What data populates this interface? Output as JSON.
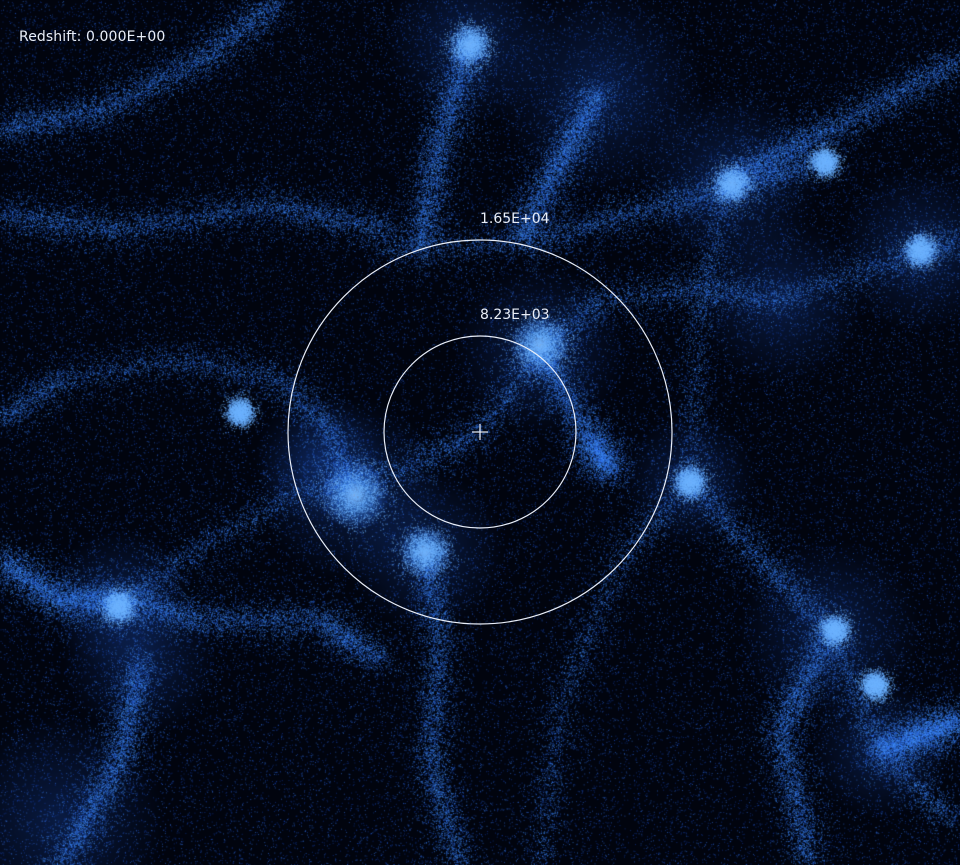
{
  "redshift": {
    "text": "Redshift: 0.000E+00"
  },
  "scale_rings": {
    "outer": {
      "label": "1.65E+04"
    },
    "inner": {
      "label": "8.23E+03"
    }
  },
  "colors": {
    "background": "#01040e",
    "particles": "#2f7fff",
    "overlay": "#e9eef8"
  }
}
